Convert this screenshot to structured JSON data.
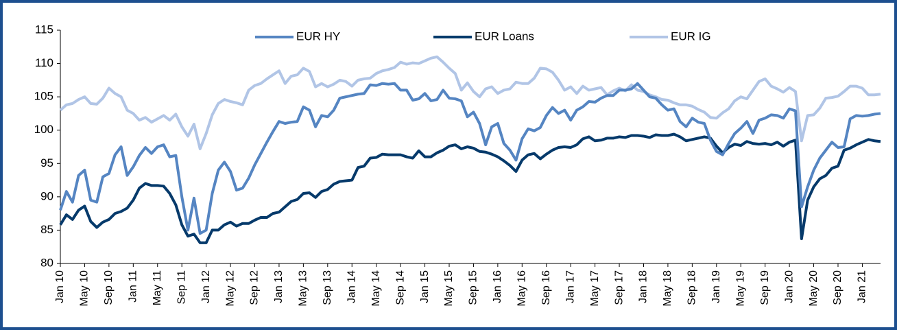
{
  "chart_data": {
    "type": "line",
    "categories": [
      "Jan 10",
      null,
      null,
      null,
      "May 10",
      null,
      null,
      null,
      "Sep 10",
      null,
      null,
      null,
      "Jan 11",
      null,
      null,
      null,
      "May 11",
      null,
      null,
      null,
      "Sep 11",
      null,
      null,
      null,
      "Jan 12",
      null,
      null,
      null,
      "May 12",
      null,
      null,
      null,
      "Sep 12",
      null,
      null,
      null,
      "Jan 13",
      null,
      null,
      null,
      "May 13",
      null,
      null,
      null,
      "Sep 13",
      null,
      null,
      null,
      "Jan 14",
      null,
      null,
      null,
      "May 14",
      null,
      null,
      null,
      "Sep 14",
      null,
      null,
      null,
      "Jan 15",
      null,
      null,
      null,
      "May 15",
      null,
      null,
      null,
      "Sep 15",
      null,
      null,
      null,
      "Jan 16",
      null,
      null,
      null,
      "May 16",
      null,
      null,
      null,
      "Sep 16",
      null,
      null,
      null,
      "Jan 17",
      null,
      null,
      null,
      "May 17",
      null,
      null,
      null,
      "Sep 17",
      null,
      null,
      null,
      "Jan 18",
      null,
      null,
      null,
      "May 18",
      null,
      null,
      null,
      "Sep 18",
      null,
      null,
      null,
      "Jan 19",
      null,
      null,
      null,
      "May 19",
      null,
      null,
      null,
      "Sep 19",
      null,
      null,
      null,
      "Jan 20",
      null,
      null,
      null,
      "May 20",
      null,
      null,
      null,
      "Sep 20",
      null,
      null,
      null,
      "Jan 21",
      null,
      null,
      null
    ],
    "series": [
      {
        "name": "EUR HY",
        "color": "#5585c2",
        "values": [
          88,
          90.8,
          89.2,
          93.2,
          94,
          89.5,
          89.2,
          93,
          93.5,
          96.3,
          97.5,
          93.2,
          94.5,
          96.2,
          97.4,
          96.5,
          97.5,
          97.8,
          96,
          96.2,
          90,
          85,
          89.8,
          84.5,
          85,
          90.5,
          94,
          95.2,
          93.8,
          91,
          91.3,
          92.8,
          94.8,
          96.5,
          98.2,
          99.8,
          101.3,
          101,
          101.2,
          101.3,
          103.5,
          103,
          100.5,
          102.2,
          102,
          103,
          104.8,
          105,
          105.2,
          105.4,
          105.5,
          106.8,
          106.7,
          107,
          106.9,
          107,
          106,
          106,
          104.5,
          104.7,
          105.5,
          104.4,
          104.6,
          106,
          104.8,
          104.7,
          104.4,
          102,
          102.7,
          101,
          97.8,
          100.5,
          101,
          98,
          97,
          95.5,
          98.7,
          100.2,
          99.9,
          100.4,
          102.2,
          103.4,
          102.5,
          103,
          101.5,
          103,
          103.5,
          104.3,
          104.2,
          104.8,
          105.2,
          105.2,
          106,
          106,
          106.2,
          107,
          106,
          105,
          104.8,
          103.8,
          103,
          103.2,
          101.3,
          100.5,
          101.8,
          101.2,
          101,
          98.5,
          96.8,
          96.3,
          98,
          99.5,
          100.3,
          101.3,
          99.5,
          101.5,
          101.8,
          102.3,
          102.2,
          101.8,
          103.2,
          102.9,
          88.5,
          91.5,
          94,
          95.8,
          97,
          98.2,
          97.4,
          97.5,
          101.7,
          102.2,
          102.1,
          102.2,
          102.4,
          102.5
        ]
      },
      {
        "name": "EUR Loans",
        "color": "#063a6b",
        "values": [
          85.8,
          87.3,
          86.6,
          88,
          88.6,
          86.3,
          85.4,
          86.2,
          86.6,
          87.5,
          87.8,
          88.3,
          89.5,
          91.3,
          92,
          91.7,
          91.7,
          91.6,
          90.5,
          88.8,
          85.8,
          84.1,
          84.4,
          83.1,
          83.1,
          85,
          85,
          85.8,
          86.2,
          85.6,
          86,
          86,
          86.5,
          86.9,
          86.9,
          87.5,
          87.7,
          88.5,
          89.3,
          89.6,
          90.5,
          90.6,
          89.9,
          90.8,
          91.1,
          91.9,
          92.3,
          92.4,
          92.5,
          94.4,
          94.6,
          95.8,
          95.9,
          96.4,
          96.3,
          96.3,
          96.3,
          96,
          95.8,
          96.9,
          96,
          96,
          96.6,
          97,
          97.6,
          97.8,
          97.2,
          97.5,
          97.3,
          96.8,
          96.7,
          96.4,
          96,
          95.4,
          94.7,
          93.8,
          95.5,
          96.3,
          96.5,
          95.7,
          96.4,
          97,
          97.4,
          97.5,
          97.4,
          97.8,
          98.7,
          99,
          98.4,
          98.5,
          98.8,
          98.8,
          99,
          98.9,
          99.2,
          99.2,
          99.1,
          98.9,
          99.3,
          99.2,
          99.2,
          99.4,
          99,
          98.4,
          98.6,
          98.8,
          99,
          98.8,
          97.6,
          96.6,
          97.4,
          97.9,
          97.7,
          98.3,
          98,
          97.9,
          98,
          97.8,
          98.2,
          97.6,
          98.2,
          98.5,
          83.7,
          89.5,
          91.5,
          92.7,
          93.2,
          94.3,
          94.6,
          97,
          97.3,
          97.8,
          98.2,
          98.6,
          98.4,
          98.3
        ]
      },
      {
        "name": "EUR IG",
        "color": "#b1c5e6",
        "values": [
          103,
          103.8,
          104,
          104.6,
          105,
          104,
          103.9,
          104.8,
          106.3,
          105.5,
          105,
          103,
          102.5,
          101.5,
          101.9,
          101.2,
          101.7,
          102.2,
          101.5,
          102.4,
          100.5,
          99.1,
          100.9,
          97.2,
          99.5,
          102.3,
          104,
          104.6,
          104.3,
          104.1,
          103.8,
          106,
          106.7,
          107,
          107.7,
          108.3,
          108.9,
          107,
          108.1,
          108.3,
          109.3,
          108.8,
          106.5,
          107,
          106.5,
          106.9,
          107.5,
          107.3,
          106.6,
          107.5,
          107.7,
          107.8,
          108.5,
          108.9,
          109.1,
          109.4,
          110.2,
          109.9,
          110.1,
          110,
          110.4,
          110.8,
          111,
          110.2,
          109.3,
          108.5,
          106,
          107.1,
          105.8,
          105,
          106.2,
          106.5,
          105.5,
          106,
          106.2,
          107.2,
          107,
          107,
          107.8,
          109.3,
          109.2,
          108.7,
          107.5,
          106,
          106.5,
          105.5,
          106.6,
          106,
          106.2,
          106.4,
          105.3,
          105.9,
          106.3,
          105.9,
          106.8,
          106,
          105.8,
          105.3,
          105,
          104.6,
          104.5,
          104.1,
          103.8,
          103.8,
          103.6,
          103.1,
          102.7,
          101.9,
          101.8,
          102.6,
          103.2,
          104.4,
          105,
          104.7,
          106,
          107.3,
          107.7,
          106.6,
          106.2,
          105.7,
          106.4,
          105.8,
          98.4,
          102.2,
          102.3,
          103.3,
          104.8,
          104.9,
          105.1,
          105.8,
          106.6,
          106.6,
          106.3,
          105.3,
          105.3,
          105.4
        ]
      }
    ],
    "ylim": [
      80,
      115
    ],
    "yticks": [
      80,
      85,
      90,
      95,
      100,
      105,
      110,
      115
    ],
    "grid": false,
    "legend": "top"
  }
}
